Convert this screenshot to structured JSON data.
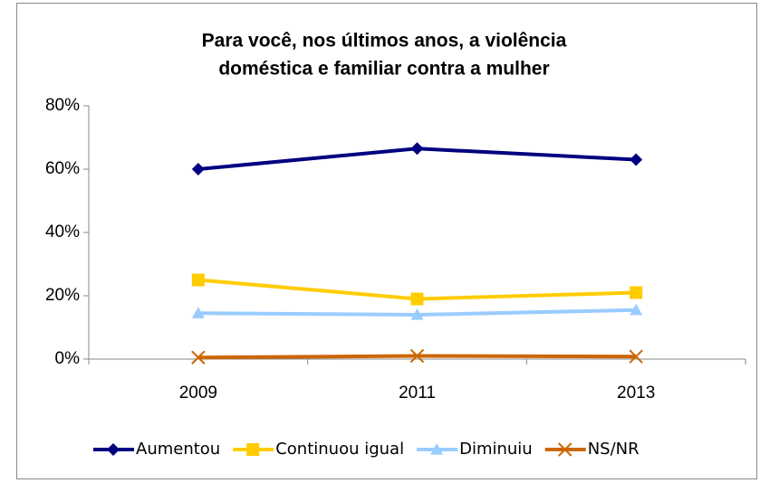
{
  "chart_data": {
    "type": "line",
    "title": [
      "Para você, nos últimos anos, a violência",
      "doméstica e familiar contra a mulher"
    ],
    "categories": [
      "2009",
      "2011",
      "2013"
    ],
    "series": [
      {
        "name": "Aumentou",
        "color": "#000080",
        "marker": "diamond",
        "values": [
          60,
          66.5,
          63
        ]
      },
      {
        "name": "Continuou igual",
        "color": "#FFCC00",
        "marker": "square",
        "values": [
          25,
          19,
          21
        ]
      },
      {
        "name": "Diminuiu",
        "color": "#99CCFF",
        "marker": "triangle",
        "values": [
          14.5,
          14,
          15.5
        ]
      },
      {
        "name": "NS/NR",
        "color": "#CC6600",
        "marker": "x",
        "values": [
          0.5,
          1,
          0.8
        ]
      }
    ],
    "ylim": [
      0,
      80
    ],
    "yticks": [
      {
        "value": 0,
        "label": "0%"
      },
      {
        "value": 20,
        "label": "20%"
      },
      {
        "value": 40,
        "label": "40%"
      },
      {
        "value": 60,
        "label": "60%"
      },
      {
        "value": 80,
        "label": "80%"
      }
    ],
    "legend": "bottom"
  }
}
